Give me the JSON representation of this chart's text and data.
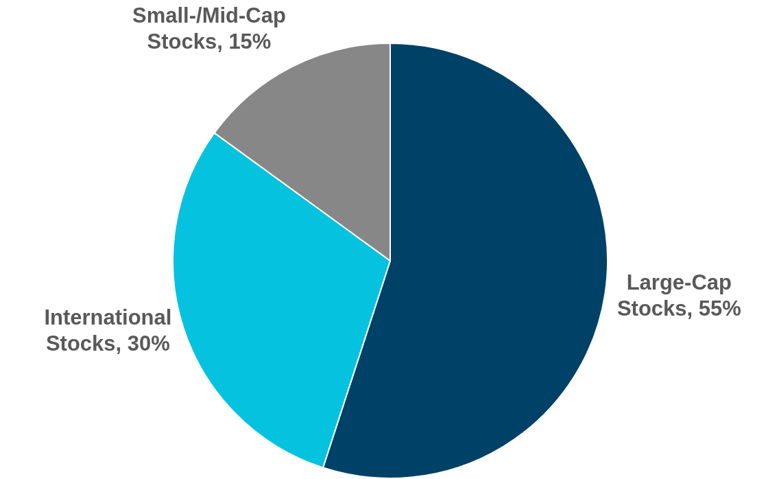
{
  "chart_data": {
    "type": "pie",
    "categories": [
      "Large-Cap Stocks",
      "International Stocks",
      "Small-/Mid-Cap Stocks"
    ],
    "values": [
      55,
      30,
      15
    ],
    "value_labels": [
      ", 55%",
      ", 30%",
      ", 15%"
    ],
    "colors": [
      "#004168",
      "#05c3de",
      "#878787"
    ],
    "legend": false
  }
}
